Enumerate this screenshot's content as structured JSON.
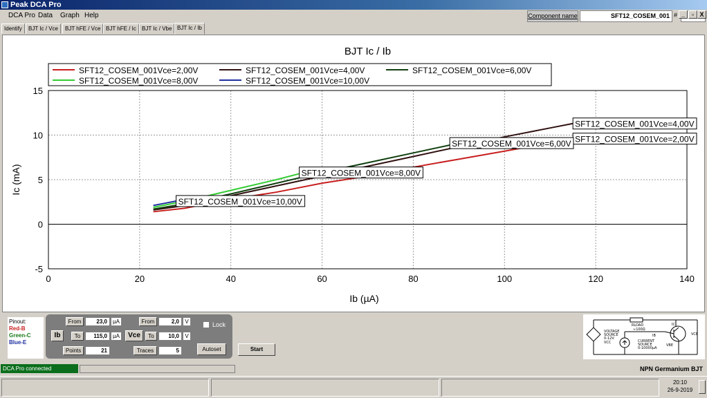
{
  "window": {
    "title": "Peak DCA Pro",
    "controls": [
      "_",
      "▫",
      "X"
    ]
  },
  "menu": [
    "DCA Pro",
    "Data",
    "Graph",
    "Help"
  ],
  "component": {
    "label": "Component name",
    "value": "SFT12_COSEM_001",
    "hash": "#",
    "index": "1"
  },
  "tabs": [
    "Identify",
    "BJT Ic / Vce",
    "BJT hFE / Vce",
    "BJT hFE / Ic",
    "BJT Ic / Vbe",
    "BJT Ic / Ib"
  ],
  "active_tab": 5,
  "chart_data": {
    "type": "line",
    "title": "BJT Ic / Ib",
    "xlabel": "Ib (µA)",
    "ylabel": "Ic (mA)",
    "xlim": [
      0,
      140
    ],
    "ylim": [
      -5,
      15
    ],
    "xticks": [
      0,
      20,
      40,
      60,
      80,
      100,
      120,
      140
    ],
    "yticks": [
      -5,
      0,
      5,
      10,
      15
    ],
    "grid": true,
    "legend_position": "top",
    "series": [
      {
        "name": "SFT12_COSEM_001Vce=2,00V",
        "color": "#c81e1e",
        "x": [
          23,
          30,
          40,
          50,
          60,
          70,
          80,
          90,
          100,
          110,
          115
        ],
        "y": [
          1.4,
          1.8,
          2.8,
          3.6,
          4.6,
          5.4,
          6.4,
          7.3,
          8.2,
          9.1,
          9.6
        ]
      },
      {
        "name": "SFT12_COSEM_001Vce=4,00V",
        "color": "#301010",
        "x": [
          23,
          30,
          40,
          50,
          60,
          70,
          80,
          90,
          100,
          110,
          115
        ],
        "y": [
          1.6,
          2.1,
          3.2,
          4.3,
          5.4,
          6.5,
          7.6,
          8.7,
          9.8,
          10.8,
          11.3
        ]
      },
      {
        "name": "SFT12_COSEM_001Vce=6,00V",
        "color": "#0f3f0f",
        "x": [
          23,
          30,
          40,
          50,
          60,
          70,
          80,
          90
        ],
        "y": [
          1.7,
          2.3,
          3.4,
          4.6,
          5.8,
          6.9,
          8.0,
          9.1
        ]
      },
      {
        "name": "SFT12_COSEM_001Vce=8,00V",
        "color": "#33cc33",
        "x": [
          23,
          30,
          40,
          50,
          56
        ],
        "y": [
          1.9,
          2.6,
          3.8,
          5.0,
          5.8
        ]
      },
      {
        "name": "SFT12_COSEM_001Vce=10,00V",
        "color": "#1f2fa0",
        "x": [
          23,
          25,
          28
        ],
        "y": [
          2.1,
          2.3,
          2.6
        ]
      }
    ],
    "annotations": [
      {
        "text": "SFT12_COSEM_001Vce=4,00V",
        "x": 115,
        "y": 11.3
      },
      {
        "text": "SFT12_COSEM_001Vce=2,00V",
        "x": 115,
        "y": 9.6
      },
      {
        "text": "SFT12_COSEM_001Vce=6,00V",
        "x": 88,
        "y": 9.1
      },
      {
        "text": "SFT12_COSEM_001Vce=8,00V",
        "x": 55,
        "y": 5.8
      },
      {
        "text": "SFT12_COSEM_001Vce=10,00V",
        "x": 28,
        "y": 2.6
      }
    ]
  },
  "pinout": {
    "title": "Pinout:",
    "lines": [
      {
        "text": "Red-B",
        "color": "#c81e1e"
      },
      {
        "text": "Green-C",
        "color": "#1a7a1a"
      },
      {
        "text": "Blue-E",
        "color": "#1f2fa0"
      }
    ]
  },
  "controls": {
    "ib_label": "Ib",
    "vce_label": "Vce",
    "from_label": "From",
    "to_label": "To",
    "points_label": "Points",
    "traces_label": "Traces",
    "ib_from": "23,0",
    "ib_to": "115,0",
    "ib_unit": "µA",
    "points": "21",
    "vce_from": "2,0",
    "vce_to": "10,0",
    "vce_unit": "V",
    "traces": "5",
    "lock_label": "Lock",
    "autoset": "Autoset",
    "start": "Start"
  },
  "diagram": {
    "rload": "RLOAD",
    "rload_val": "≈100Ω",
    "ic": "IC",
    "ib": "IB",
    "vsrc1": "VOLTAGE",
    "vsrc2": "SOURCE",
    "vsrc3": "0-12V",
    "vcc": "VCC",
    "csrc1": "CURRENT",
    "csrc2": "SOURCE",
    "csrc3": "0-10000µA",
    "vbe": "VBE",
    "vce": "VCE"
  },
  "status": {
    "connection": "DCA Pro connected",
    "device_type": "NPN Germanium BJT"
  },
  "taskbar": {
    "time": "20:10",
    "date": "26-9-2019"
  }
}
